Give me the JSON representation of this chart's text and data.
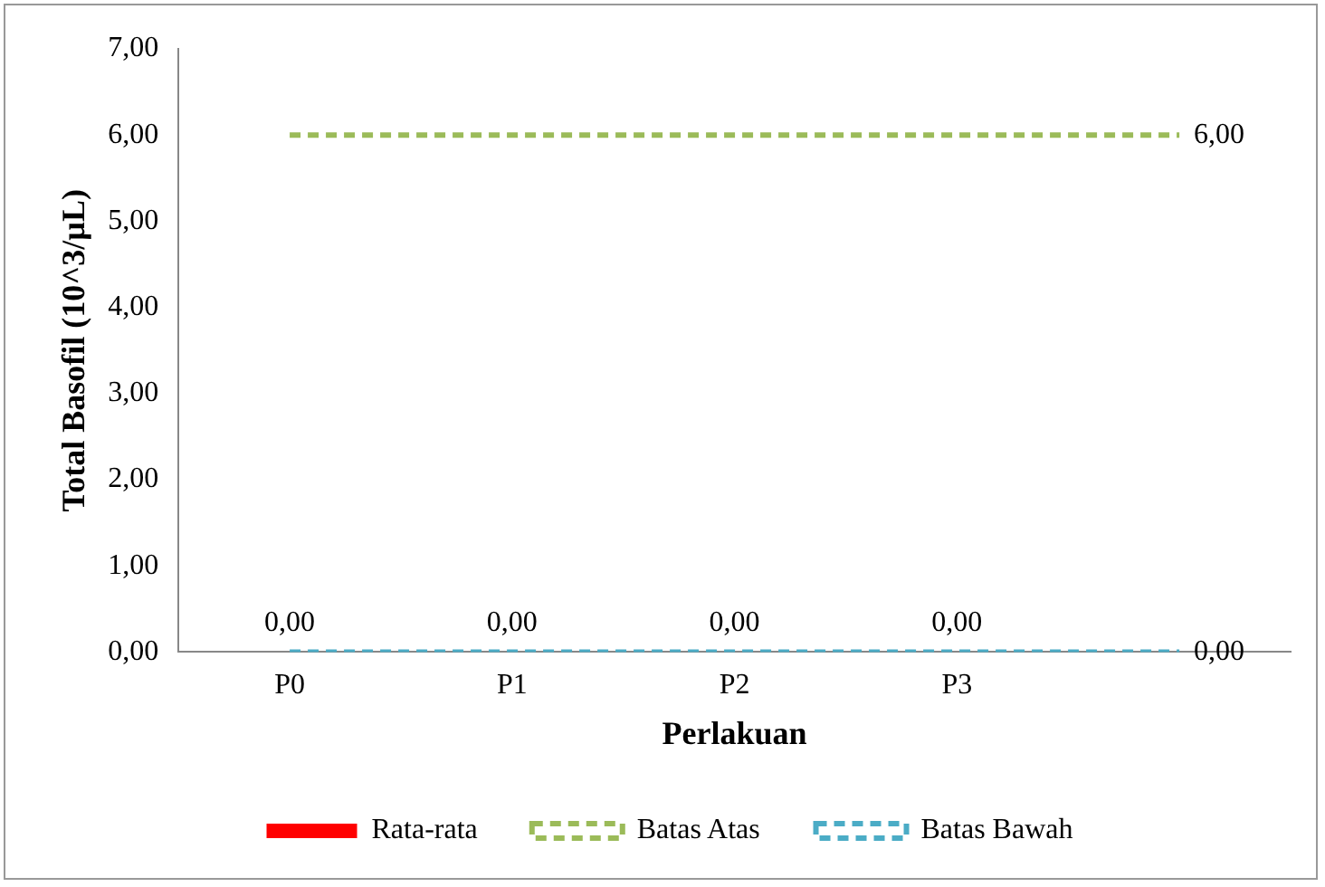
{
  "chart_data": {
    "type": "bar",
    "xlabel": "Perlakuan",
    "ylabel": "Total Basofil (10^3/µL)",
    "categories": [
      "P0",
      "P1",
      "P2",
      "P3",
      null
    ],
    "series": [
      {
        "name": "Rata-rata",
        "color": "#ff0000",
        "values": [
          0,
          0,
          0,
          0,
          null
        ],
        "value_labels": [
          "0,00",
          "0,00",
          "0,00",
          "0,00",
          null
        ]
      },
      {
        "name": "Batas Atas",
        "type": "line",
        "color": "#9bbb59",
        "line_style": "dashed",
        "values": [
          6,
          6,
          6,
          6,
          6
        ],
        "value_labels": [
          null,
          null,
          null,
          null,
          "6,00"
        ]
      },
      {
        "name": "Batas Bawah",
        "type": "line",
        "color": "#4bacc6",
        "line_style": "dashed",
        "values": [
          0,
          0,
          0,
          0,
          0
        ],
        "value_labels": [
          null,
          null,
          null,
          null,
          "0,00"
        ]
      }
    ],
    "ylim": [
      0,
      7
    ],
    "yticks": [
      {
        "value": 0,
        "label": "0,00"
      },
      {
        "value": 1,
        "label": "1,00"
      },
      {
        "value": 2,
        "label": "2,00"
      },
      {
        "value": 3,
        "label": "3,00"
      },
      {
        "value": 4,
        "label": "4,00"
      },
      {
        "value": 5,
        "label": "5,00"
      },
      {
        "value": 6,
        "label": "6,00"
      },
      {
        "value": 7,
        "label": "7,00"
      }
    ],
    "grid": false,
    "legend": "bottom",
    "marker": "none"
  }
}
